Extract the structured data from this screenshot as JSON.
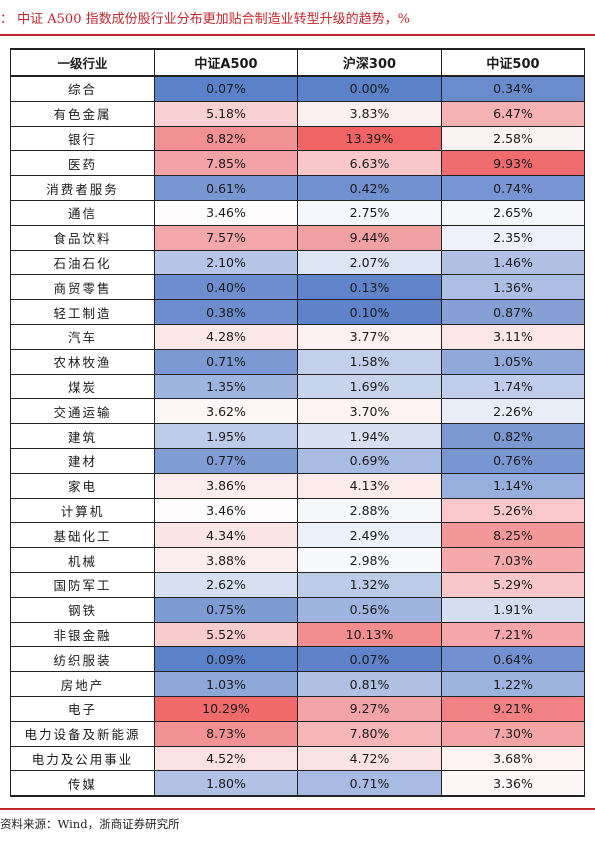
{
  "title": "：  中证 A500 指数成份股行业分布更加贴合制造业转型升级的趋势，%",
  "table": {
    "headers": [
      "一级行业",
      "中证A500",
      "沪深300",
      "中证500"
    ],
    "rows": [
      {
        "industry": "综合",
        "a500": "0.07%",
        "hs300": "0.00%",
        "zz500": "0.34%",
        "colors": [
          "#5b81c8",
          "#5b81c8",
          "#6a8ccd"
        ]
      },
      {
        "industry": "有色金属",
        "a500": "5.18%",
        "hs300": "3.83%",
        "zz500": "6.47%",
        "colors": [
          "#f9d1d3",
          "#fdf0f0",
          "#f6b1b3"
        ]
      },
      {
        "industry": "银行",
        "a500": "8.82%",
        "hs300": "13.39%",
        "zz500": "2.58%",
        "colors": [
          "#f29193",
          "#f06466",
          "#fbf3f3"
        ]
      },
      {
        "industry": "医药",
        "a500": "7.85%",
        "hs300": "6.63%",
        "zz500": "9.93%",
        "colors": [
          "#f3a3a5",
          "#f7c7c9",
          "#ef6c6e"
        ]
      },
      {
        "industry": "消费者服务",
        "a500": "0.61%",
        "hs300": "0.42%",
        "zz500": "0.74%",
        "colors": [
          "#7896d2",
          "#7190cf",
          "#7795d2"
        ]
      },
      {
        "industry": "通信",
        "a500": "3.46%",
        "hs300": "2.75%",
        "zz500": "2.65%",
        "colors": [
          "#fefcfc",
          "#f4f6fb",
          "#f6f7fb"
        ]
      },
      {
        "industry": "食品饮料",
        "a500": "7.57%",
        "hs300": "9.44%",
        "zz500": "2.35%",
        "colors": [
          "#f4a8aa",
          "#f2a1a3",
          "#eef1f9"
        ]
      },
      {
        "industry": "石油石化",
        "a500": "2.10%",
        "hs300": "2.07%",
        "zz500": "1.46%",
        "colors": [
          "#b6c6e6",
          "#dde4f3",
          "#b0c1e4"
        ]
      },
      {
        "industry": "商贸零售",
        "a500": "0.40%",
        "hs300": "0.13%",
        "zz500": "1.36%",
        "colors": [
          "#6f8ecf",
          "#6183ca",
          "#acbee3"
        ]
      },
      {
        "industry": "轻工制造",
        "a500": "0.38%",
        "hs300": "0.10%",
        "zz500": "0.87%",
        "colors": [
          "#6e8dce",
          "#6082c9",
          "#86a0d6"
        ]
      },
      {
        "industry": "汽车",
        "a500": "4.28%",
        "hs300": "3.77%",
        "zz500": "3.11%",
        "colors": [
          "#fce7e8",
          "#fdf1f1",
          "#fce6e7"
        ]
      },
      {
        "industry": "农林牧渔",
        "a500": "0.71%",
        "hs300": "1.58%",
        "zz500": "1.05%",
        "colors": [
          "#7c99d3",
          "#c3d0eb",
          "#91a9da"
        ]
      },
      {
        "industry": "煤炭",
        "a500": "1.35%",
        "hs300": "1.69%",
        "zz500": "1.74%",
        "colors": [
          "#9fb4df",
          "#c8d4ec",
          "#c0cdea"
        ]
      },
      {
        "industry": "交通运输",
        "a500": "3.62%",
        "hs300": "3.70%",
        "zz500": "2.26%",
        "colors": [
          "#fdf7f7",
          "#fdf3f3",
          "#e9edf7"
        ]
      },
      {
        "industry": "建筑",
        "a500": "1.95%",
        "hs300": "1.94%",
        "zz500": "0.82%",
        "colors": [
          "#bccbe8",
          "#d7dff1",
          "#7b98d3"
        ]
      },
      {
        "industry": "建材",
        "a500": "0.77%",
        "hs300": "0.69%",
        "zz500": "0.76%",
        "colors": [
          "#809cd4",
          "#a8bbe2",
          "#7896d2"
        ]
      },
      {
        "industry": "家电",
        "a500": "3.86%",
        "hs300": "4.13%",
        "zz500": "1.14%",
        "colors": [
          "#fcedee",
          "#fcebeb",
          "#98aedc"
        ]
      },
      {
        "industry": "计算机",
        "a500": "3.46%",
        "hs300": "2.88%",
        "zz500": "5.26%",
        "colors": [
          "#fefcfc",
          "#f6f7fb",
          "#f8c8ca"
        ]
      },
      {
        "industry": "基础化工",
        "a500": "4.34%",
        "hs300": "2.49%",
        "zz500": "8.25%",
        "colors": [
          "#fbe5e6",
          "#ecf0f8",
          "#f39899"
        ]
      },
      {
        "industry": "机械",
        "a500": "3.88%",
        "hs300": "2.98%",
        "zz500": "7.03%",
        "colors": [
          "#fcedee",
          "#f8f9fc",
          "#f5a9ab"
        ]
      },
      {
        "industry": "国防军工",
        "a500": "2.62%",
        "hs300": "1.32%",
        "zz500": "5.29%",
        "colors": [
          "#d7e0f1",
          "#bccbe8",
          "#f8c7c9"
        ]
      },
      {
        "industry": "钢铁",
        "a500": "0.75%",
        "hs300": "0.56%",
        "zz500": "1.91%",
        "colors": [
          "#7f9bd4",
          "#9fb4df",
          "#d5def1"
        ]
      },
      {
        "industry": "非银金融",
        "a500": "5.52%",
        "hs300": "10.13%",
        "zz500": "7.21%",
        "colors": [
          "#f9cccd",
          "#f28e90",
          "#f5a6a8"
        ]
      },
      {
        "industry": "纺织服装",
        "a500": "0.09%",
        "hs300": "0.07%",
        "zz500": "0.64%",
        "colors": [
          "#5c82c9",
          "#5f82c9",
          "#7391d0"
        ]
      },
      {
        "industry": "房地产",
        "a500": "1.03%",
        "hs300": "0.81%",
        "zz500": "1.22%",
        "colors": [
          "#8ea7d9",
          "#b0c1e4",
          "#9eb3de"
        ]
      },
      {
        "industry": "电子",
        "a500": "10.29%",
        "hs300": "9.27%",
        "zz500": "9.21%",
        "colors": [
          "#f06a6c",
          "#f2a4a6",
          "#f18183"
        ]
      },
      {
        "industry": "电力设备及新能源",
        "a500": "8.73%",
        "hs300": "7.80%",
        "zz500": "7.30%",
        "colors": [
          "#f29294",
          "#f6b6b8",
          "#f5a4a6"
        ]
      },
      {
        "industry": "电力及公用事业",
        "a500": "4.52%",
        "hs300": "4.72%",
        "zz500": "3.68%",
        "colors": [
          "#fbe1e2",
          "#fbe3e4",
          "#fdf3f3"
        ]
      },
      {
        "industry": "传媒",
        "a500": "1.80%",
        "hs300": "0.71%",
        "zz500": "3.36%",
        "colors": [
          "#b1c2e4",
          "#a8bbe2",
          "#fdf7f7"
        ]
      }
    ]
  },
  "source": "资料来源：Wind，浙商证券研究所"
}
